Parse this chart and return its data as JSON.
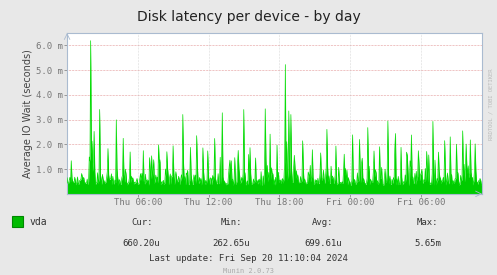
{
  "title": "Disk latency per device - by day",
  "ylabel": "Average IO Wait (seconds)",
  "background_color": "#e8e8e8",
  "plot_bg_color": "#ffffff",
  "line_color": "#00dd00",
  "fill_color": "#00cc00",
  "yticks_labels": [
    "1.0 m",
    "2.0 m",
    "3.0 m",
    "4.0 m",
    "5.0 m",
    "6.0 m"
  ],
  "yticks_values": [
    0.001,
    0.002,
    0.003,
    0.004,
    0.005,
    0.006
  ],
  "ymax": 0.0065,
  "ymin": 0.0,
  "xticks_labels": [
    "Thu 06:00",
    "Thu 12:00",
    "Thu 18:00",
    "Fri 00:00",
    "Fri 06:00"
  ],
  "xticks_hours": [
    6,
    12,
    18,
    24,
    30
  ],
  "total_hours": 35.2,
  "legend_label": "vda",
  "cur": "660.20u",
  "min_val": "262.65u",
  "avg": "699.61u",
  "max_val": "5.65m",
  "last_update": "Last update: Fri Sep 20 11:10:04 2024",
  "munin_version": "Munin 2.0.73",
  "watermark": "RRDTOOL / TOBI OETIKER",
  "title_fontsize": 10,
  "ylabel_fontsize": 7,
  "tick_fontsize": 6.5,
  "stats_fontsize": 6.5,
  "legend_fontsize": 7
}
